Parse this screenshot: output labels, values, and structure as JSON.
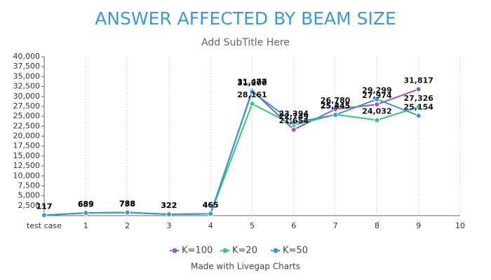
{
  "chart_data": {
    "type": "line",
    "title": "ANSWER AFFECTED BY BEAM SIZE",
    "subtitle": "Add SubTitle Here",
    "caption": "Made with Livegap Charts",
    "categories": [
      "test case",
      "1",
      "2",
      "3",
      "4",
      "5",
      "6",
      "7",
      "8",
      "9",
      "10"
    ],
    "series": [
      {
        "name": "K=100",
        "color": "#9b59b6",
        "values": [
          117,
          689,
          788,
          322,
          465,
          31477,
          21654,
          26780,
          27974,
          31817,
          null
        ],
        "value_labels": [
          "117",
          "689",
          "788",
          "322",
          "465",
          "31,477",
          "21,654",
          "26,780",
          "27,974",
          "31,817",
          null
        ]
      },
      {
        "name": "K=20",
        "color": "#2ecc71",
        "values": [
          117,
          659,
          738,
          322,
          465,
          28161,
          22749,
          25445,
          24032,
          27326,
          null
        ],
        "value_labels": [
          "117",
          "659",
          "738",
          "322",
          "465",
          "28,161",
          "22,749",
          "25,445",
          "24,032",
          "27,326",
          null
        ]
      },
      {
        "name": "K=50",
        "color": "#3498db",
        "values": [
          117,
          659,
          788,
          322,
          465,
          31200,
          23394,
          25345,
          29299,
          25154,
          null
        ],
        "value_labels": [
          "117",
          "659",
          "788",
          "322",
          "465",
          "31,200",
          "23,394",
          "25,345",
          "29,299",
          "25,154",
          null
        ]
      }
    ],
    "ylim": [
      0,
      40000
    ],
    "yticks": [
      {
        "value": 2500,
        "label": "2,500"
      },
      {
        "value": 5000,
        "label": "5,000"
      },
      {
        "value": 7500,
        "label": "7,500"
      },
      {
        "value": 10000,
        "label": "10,000"
      },
      {
        "value": 12500,
        "label": "12,500"
      },
      {
        "value": 15000,
        "label": "15,000"
      },
      {
        "value": 17500,
        "label": "17,500"
      },
      {
        "value": 20000,
        "label": "20,000"
      },
      {
        "value": 22500,
        "label": "22,500"
      },
      {
        "value": 25000,
        "label": "25,000"
      },
      {
        "value": 27500,
        "label": "27,500"
      },
      {
        "value": 30000,
        "label": "30,000"
      },
      {
        "value": 32500,
        "label": "32,500"
      },
      {
        "value": 35000,
        "label": "35,000"
      },
      {
        "value": 37500,
        "label": "37,500"
      },
      {
        "value": 40000,
        "label": "40,000"
      }
    ],
    "grid": true
  }
}
